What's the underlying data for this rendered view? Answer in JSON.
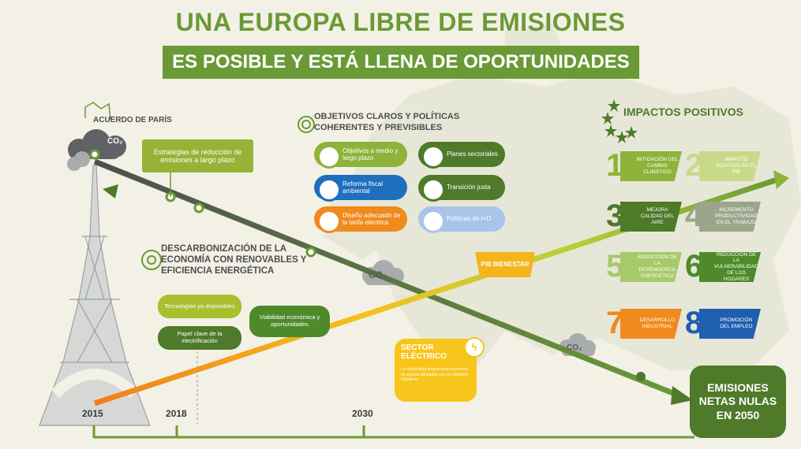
{
  "title": "UNA EUROPA LIBRE DE EMISIONES",
  "subtitle": "ES POSIBLE Y ESTÁ LLENA DE OPORTUNIDADES",
  "paris": "ACUERDO DE PARÍS",
  "co2": "CO₂",
  "strategies": "Estrategias de reducción de emisiones a largo plazo",
  "objectives": {
    "heading": "OBJETIVOS CLAROS Y POLÍTICAS COHERENTES Y PREVISIBLES",
    "items": [
      {
        "label": "Objetivos a medio y largo plazo",
        "color": "#8db33a"
      },
      {
        "label": "Planes sectoriales",
        "color": "#4e7a2a"
      },
      {
        "label": "Reforma fiscal ambiental",
        "color": "#1f6fbf"
      },
      {
        "label": "Transición justa",
        "color": "#4e7a2a"
      },
      {
        "label": "Diseño adecuado de la tarifa eléctrica",
        "color": "#f08a1c"
      },
      {
        "label": "Políticas de I+D",
        "color": "#a9c4e8"
      }
    ]
  },
  "decarb": {
    "heading": "DESCARBONIZACIÓN DE LA ECONOMÍA CON RENOVABLES Y EFICIENCIA ENERGÉTICA",
    "tech": "Tecnologías ya disponibles",
    "paper": "Papel clave de la electrificación",
    "viability": "Viabilidad económica y oportunidades"
  },
  "pib": "PIB BIENESTAR",
  "sector": {
    "heading": "SECTOR ELÉCTRICO",
    "body": "La electricidad proporciona soluciones de soporte alineadas con los objetivos climáticos"
  },
  "impacts": {
    "heading": "IMPACTOS POSITIVOS",
    "items": [
      {
        "num": "1",
        "label": "MITIGACIÓN DEL CAMBIO CLIMÁTICO",
        "color": "#8db33a"
      },
      {
        "num": "2",
        "label": "IMPACTO POSITIVO EN EL PIB",
        "color": "#c9d98a"
      },
      {
        "num": "3",
        "label": "MEJORA CALIDAD DEL AIRE",
        "color": "#4e7a2a"
      },
      {
        "num": "4",
        "label": "INCREMENTO PRODUCTIVIDAD EN EL TRABAJO",
        "color": "#9aa58a"
      },
      {
        "num": "5",
        "label": "REDUCCIÓN DE LA DEPENDENCIA ENERGÉTICA",
        "color": "#a6c96a"
      },
      {
        "num": "6",
        "label": "REDUCCIÓN DE LA VULNERABILIDAD DE LOS HOGARES",
        "color": "#4e8a2a"
      },
      {
        "num": "7",
        "label": "DESARROLLO INDUSTRIAL",
        "color": "#f08a1c"
      },
      {
        "num": "8",
        "label": "PROMOCIÓN DEL EMPLEO",
        "color": "#1f5fb0"
      }
    ]
  },
  "final": "EMISIONES NETAS NULAS EN 2050",
  "years": [
    "2015",
    "2018",
    "2030"
  ]
}
